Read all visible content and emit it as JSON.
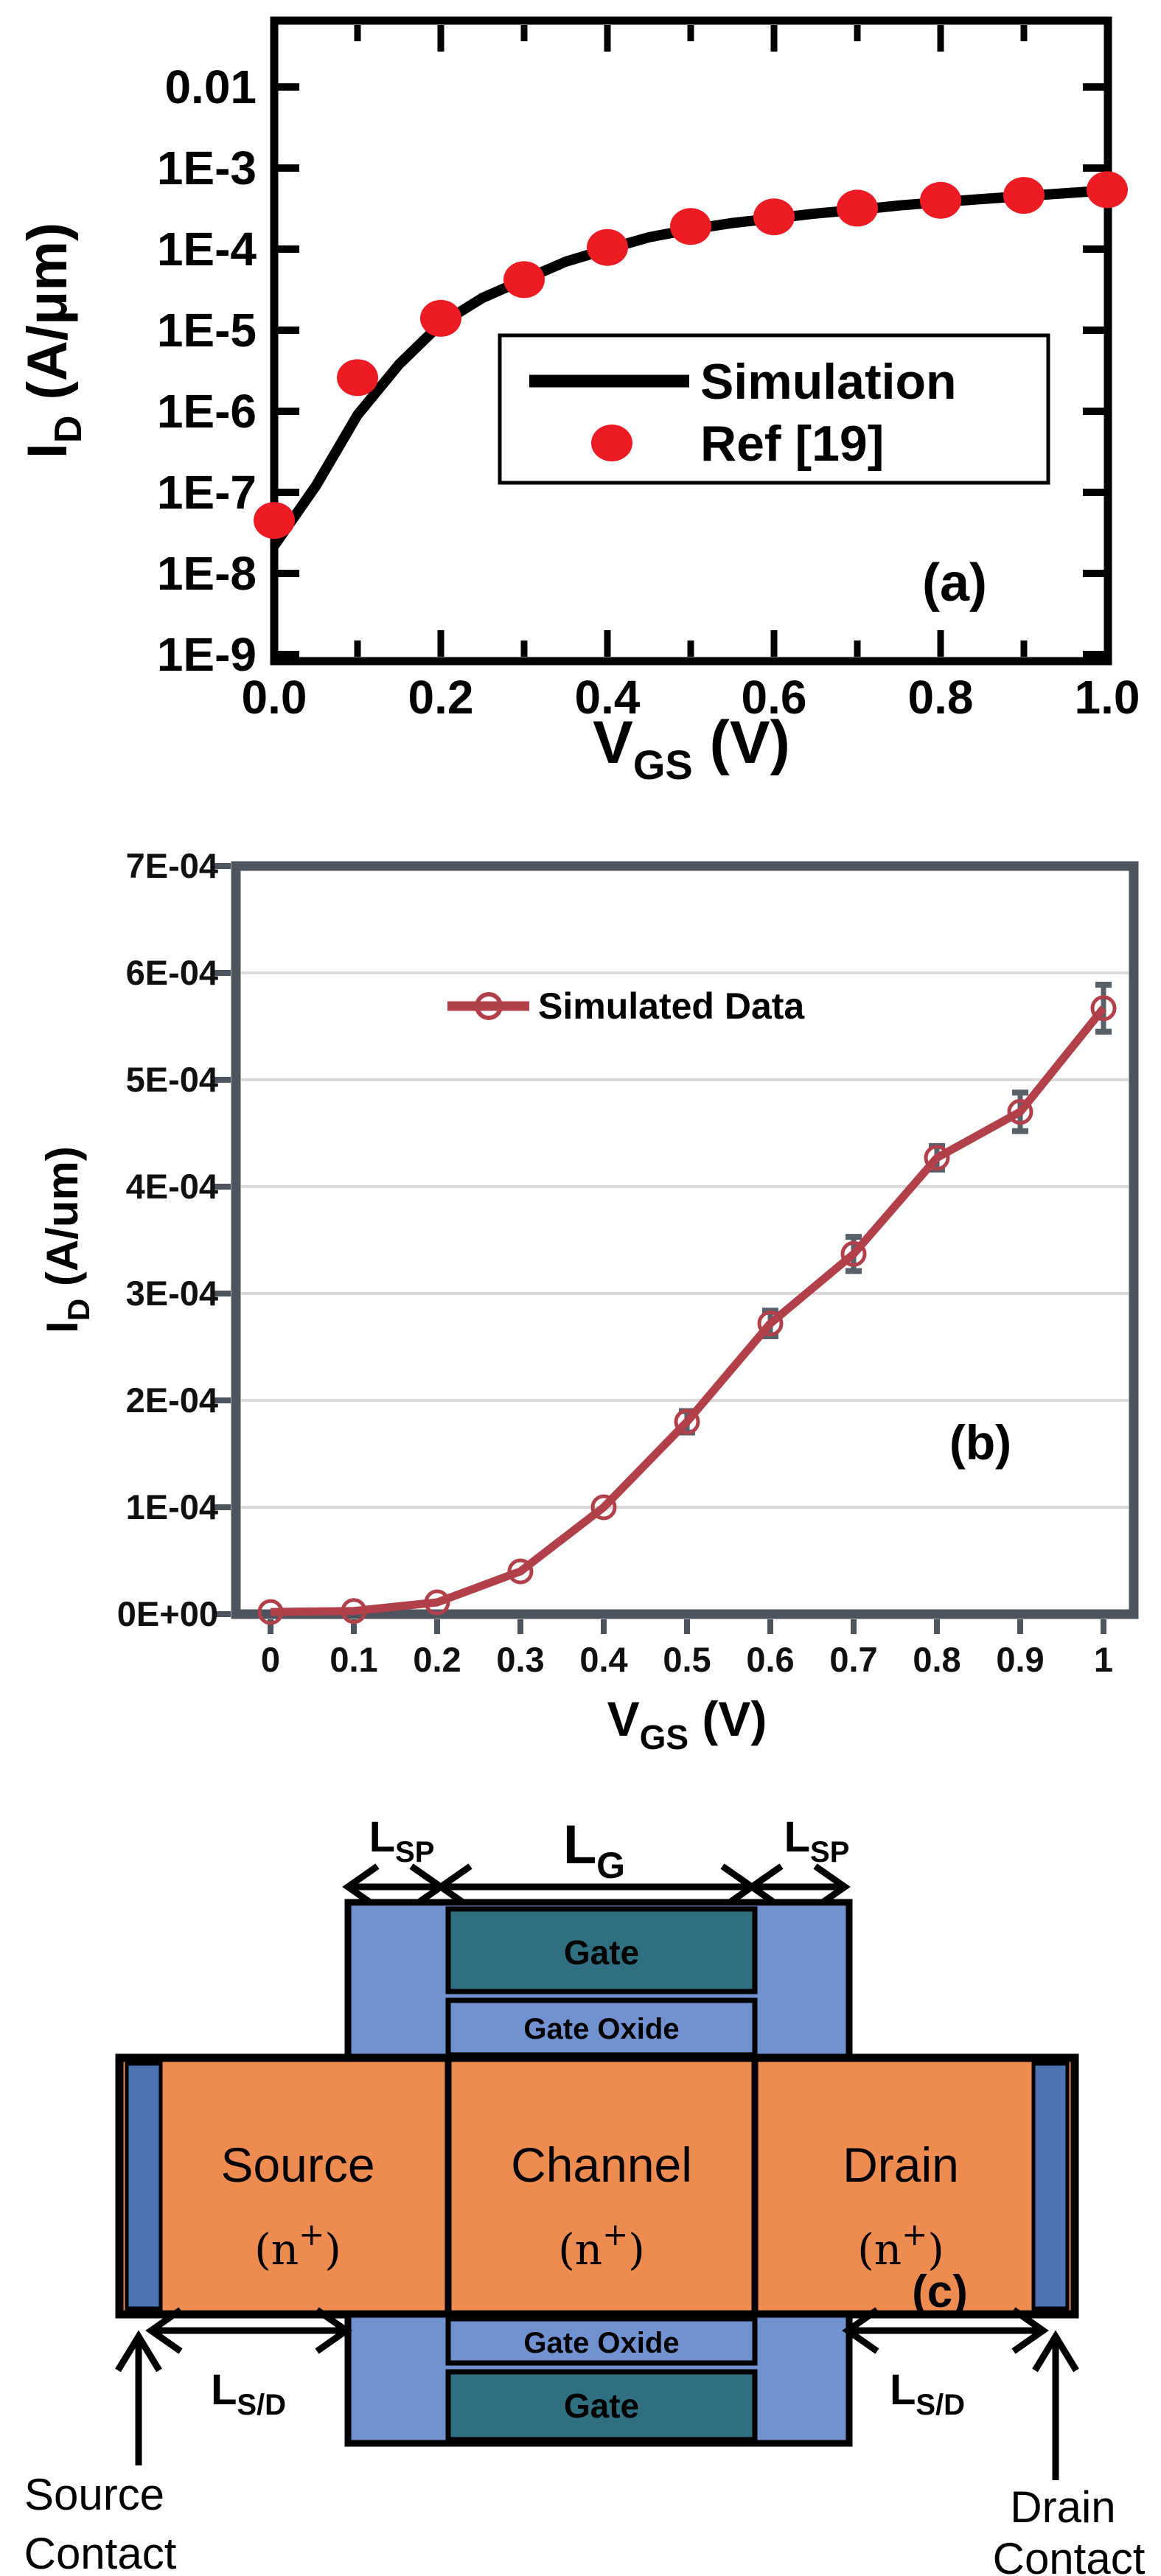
{
  "figure": {
    "description": "Three-panel device figure: (a) log-scale ID-VGS transfer curve, (b) linear-scale ID-VGS with error bars, (c) transistor cross-section schematic"
  },
  "colors": {
    "sim_line": "#000000",
    "ref_dot": "#ED1C24",
    "sim_b_line": "#B2404B",
    "error_bar": "#586069",
    "plot_border_b": "#4E545D",
    "gridline": "#D9D9D9",
    "body_orange": "#EE8B50",
    "contact_blue": "#4A73B2",
    "spacer_blue": "#7191D0",
    "gate_teal": "#2F6F80"
  },
  "chart_data": [
    {
      "id": "a",
      "type": "line",
      "panel_label": "(a)",
      "xlabel": "VGS (V)",
      "ylabel": "ID (A/μm)",
      "x_title": {
        "v": "V",
        "sub": "GS",
        "unit": " (V)"
      },
      "y_title": {
        "i": "I",
        "sub": "D",
        "unit": " (A/μm)"
      },
      "y_scale": "log",
      "xlim": [
        0.0,
        1.0
      ],
      "ylim": [
        1e-09,
        0.01
      ],
      "x_ticks": [
        "0.0",
        "0.2",
        "0.4",
        "0.6",
        "0.8",
        "1.0"
      ],
      "y_ticks": [
        "0.01",
        "1E-3",
        "1E-4",
        "1E-5",
        "1E-6",
        "1E-7",
        "1E-8",
        "1E-9"
      ],
      "legend_position": "center-right",
      "grid": false,
      "series": [
        {
          "name": "Simulation",
          "type": "line",
          "color": "#000000",
          "x": [
            0,
            0.05,
            0.1,
            0.15,
            0.2,
            0.25,
            0.3,
            0.35,
            0.4,
            0.45,
            0.5,
            0.55,
            0.6,
            0.65,
            0.7,
            0.75,
            0.8,
            0.85,
            0.9,
            0.95,
            1.0
          ],
          "y": [
            2.2e-08,
            1.2e-07,
            9e-07,
            3.8e-06,
            1.2e-05,
            2.5e-05,
            4.2e-05,
            7e-05,
            0.0001,
            0.00014,
            0.000175,
            0.00021,
            0.00024,
            0.000275,
            0.000305,
            0.000345,
            0.00038,
            0.000415,
            0.00045,
            0.00049,
            0.00053
          ]
        },
        {
          "name": "Ref [19]",
          "type": "scatter",
          "color": "#ED1C24",
          "x": [
            0,
            0.1,
            0.2,
            0.3,
            0.4,
            0.5,
            0.6,
            0.7,
            0.8,
            0.9,
            1.0
          ],
          "y": [
            4.5e-08,
            2.6e-06,
            1.4e-05,
            4.2e-05,
            0.000105,
            0.00019,
            0.00025,
            0.00032,
            0.0004,
            0.00046,
            0.00054
          ]
        }
      ]
    },
    {
      "id": "b",
      "type": "line",
      "panel_label": "(b)",
      "xlabel": "VGS (V)",
      "ylabel": "ID (A/um)",
      "x_title": {
        "v": "V",
        "sub": "GS",
        "unit": " (V)"
      },
      "y_title": {
        "i": "I",
        "sub": "D",
        "unit": " (A/um)"
      },
      "y_scale": "linear",
      "xlim": [
        0,
        1
      ],
      "ylim": [
        0,
        0.0007
      ],
      "x_ticks": [
        "0",
        "0.1",
        "0.2",
        "0.3",
        "0.4",
        "0.5",
        "0.6",
        "0.7",
        "0.8",
        "0.9",
        "1"
      ],
      "y_ticks": [
        "7E-04",
        "6E-04",
        "5E-04",
        "4E-04",
        "3E-04",
        "2E-04",
        "1E-04",
        "0E+00"
      ],
      "legend_position": "top-center-inside",
      "grid": true,
      "series": [
        {
          "name": "Simulated Data",
          "type": "line-scatter-errorbar",
          "color": "#B2404B",
          "x": [
            0,
            0.1,
            0.2,
            0.3,
            0.4,
            0.5,
            0.6,
            0.7,
            0.8,
            0.9,
            1
          ],
          "y": [
            2e-06,
            3e-06,
            1.1e-05,
            4e-05,
            0.0001,
            0.00018,
            0.000272,
            0.000337,
            0.000427,
            0.00047,
            0.000567
          ],
          "yerr": [
            0,
            0,
            0,
            0,
            0,
            1e-05,
            1.2e-05,
            1.6e-05,
            1.1e-05,
            1.8e-05,
            2.2e-05
          ]
        }
      ]
    }
  ],
  "panel_c": {
    "label": "(c)",
    "dims": {
      "lsp": {
        "main": "L",
        "sub": "SP"
      },
      "lg": {
        "main": "L",
        "sub": "G"
      },
      "lsd": {
        "main": "L",
        "sub": "S/D"
      }
    },
    "regions": {
      "gate": "Gate",
      "gate_oxide": "Gate Oxide",
      "source": "Source",
      "channel": "Channel",
      "drain": "Drain",
      "doping": {
        "open": "(n",
        "sup": "+",
        "close": ")"
      }
    },
    "contacts": {
      "source_line1": "Source",
      "source_line2": "Contact",
      "drain_line1": "Drain",
      "drain_line2": "Contact"
    }
  }
}
